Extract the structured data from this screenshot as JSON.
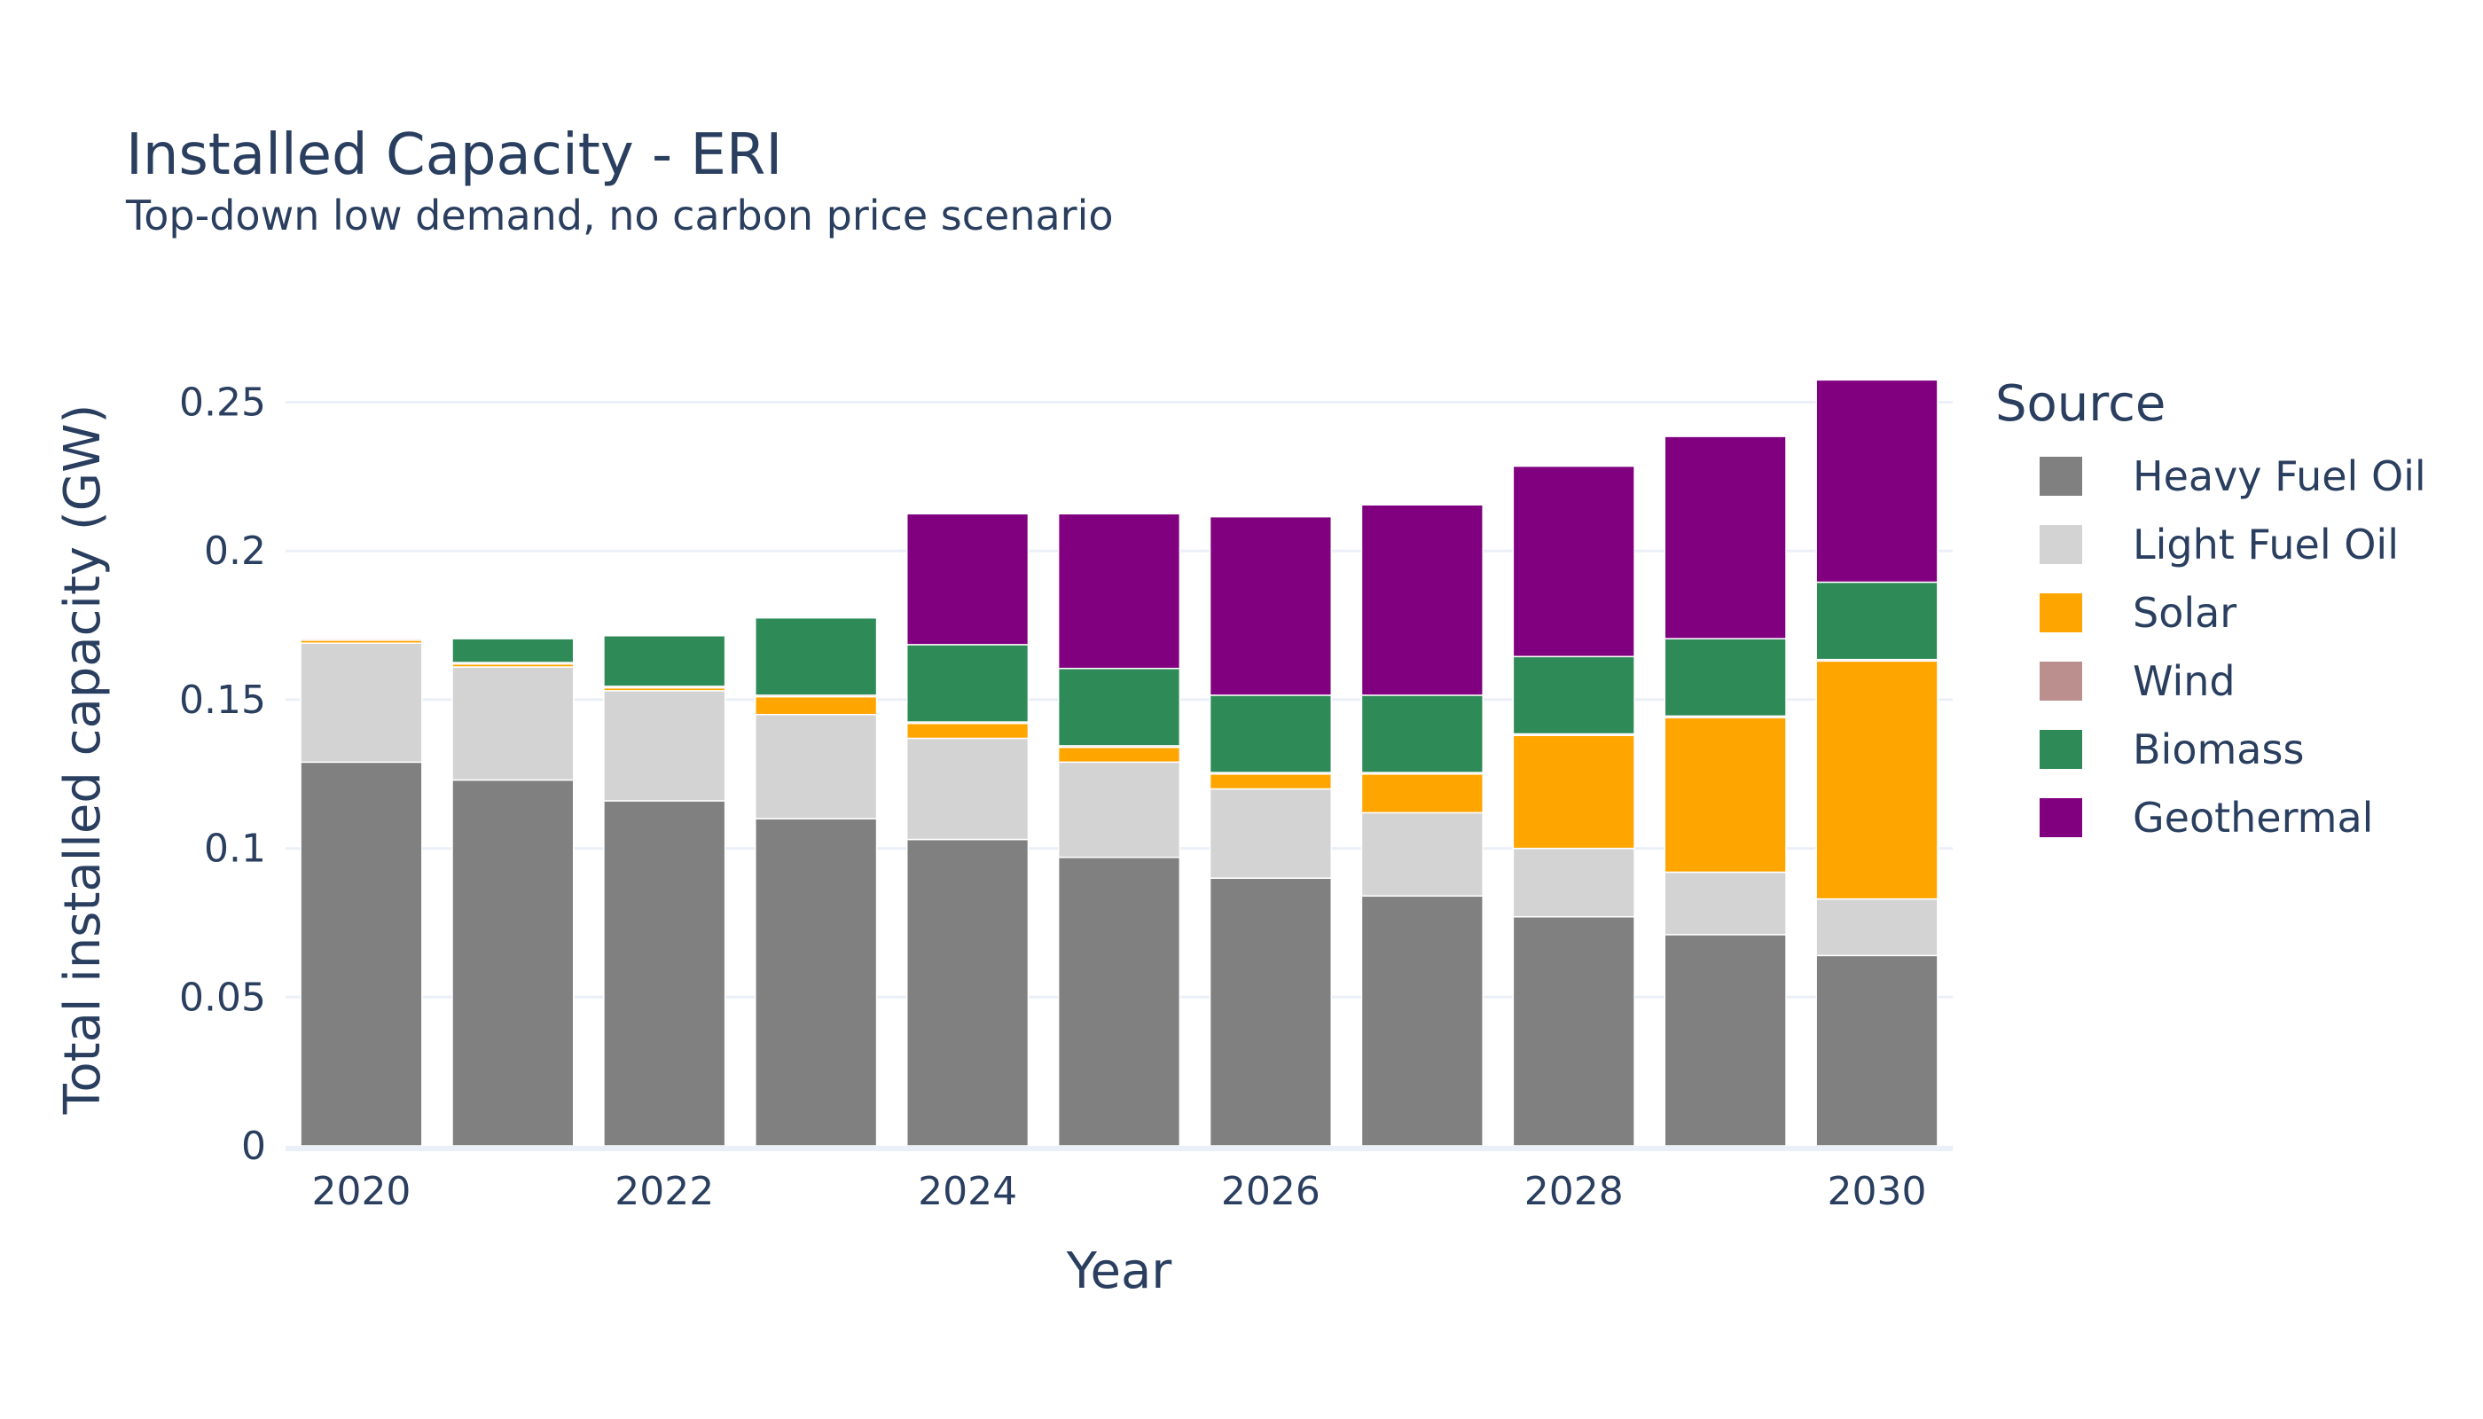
{
  "chart_data": {
    "type": "bar",
    "barmode": "stack",
    "title": "Installed Capacity - ERI",
    "subtitle": "Top-down low demand, no carbon price scenario",
    "xlabel": "Year",
    "ylabel": "Total installed capacity (GW)",
    "x": [
      2020,
      2021,
      2022,
      2023,
      2024,
      2025,
      2026,
      2027,
      2028,
      2029,
      2030
    ],
    "x_tick_values": [
      2020,
      2022,
      2024,
      2026,
      2028,
      2030
    ],
    "x_tick_labels": [
      "2020",
      "2022",
      "2024",
      "2026",
      "2028",
      "2030"
    ],
    "ylim": [
      0,
      0.26
    ],
    "y_tick_values": [
      0,
      0.05,
      0.1,
      0.15,
      0.2,
      0.25
    ],
    "y_tick_labels": [
      "0",
      "0.05",
      "0.1",
      "0.15",
      "0.2",
      "0.25"
    ],
    "grid": true,
    "legend": {
      "title": "Source",
      "position": "right"
    },
    "series": [
      {
        "name": "Heavy Fuel Oil",
        "color": "#808080",
        "values": [
          0.129,
          0.123,
          0.116,
          0.11,
          0.103,
          0.097,
          0.09,
          0.084,
          0.077,
          0.071,
          0.064
        ]
      },
      {
        "name": "Light Fuel Oil",
        "color": "#d3d3d3",
        "values": [
          0.04,
          0.038,
          0.037,
          0.035,
          0.034,
          0.032,
          0.03,
          0.028,
          0.023,
          0.021,
          0.019
        ]
      },
      {
        "name": "Solar",
        "color": "#ffa500",
        "values": [
          0.001,
          0.001,
          0.001,
          0.006,
          0.005,
          0.005,
          0.005,
          0.013,
          0.038,
          0.052,
          0.08
        ]
      },
      {
        "name": "Wind",
        "color": "#bc8f8f",
        "values": [
          0.0005,
          0.0005,
          0.0005,
          0.0005,
          0.0005,
          0.0005,
          0.0005,
          0.0005,
          0.0005,
          0.0005,
          0.0005
        ]
      },
      {
        "name": "Biomass",
        "color": "#2e8b57",
        "values": [
          0.0,
          0.008,
          0.017,
          0.026,
          0.026,
          0.026,
          0.026,
          0.026,
          0.026,
          0.026,
          0.026
        ]
      },
      {
        "name": "Geothermal",
        "color": "#800080",
        "values": [
          0.0,
          0.0,
          0.0,
          0.0,
          0.044,
          0.052,
          0.06,
          0.064,
          0.064,
          0.068,
          0.068
        ]
      }
    ]
  }
}
